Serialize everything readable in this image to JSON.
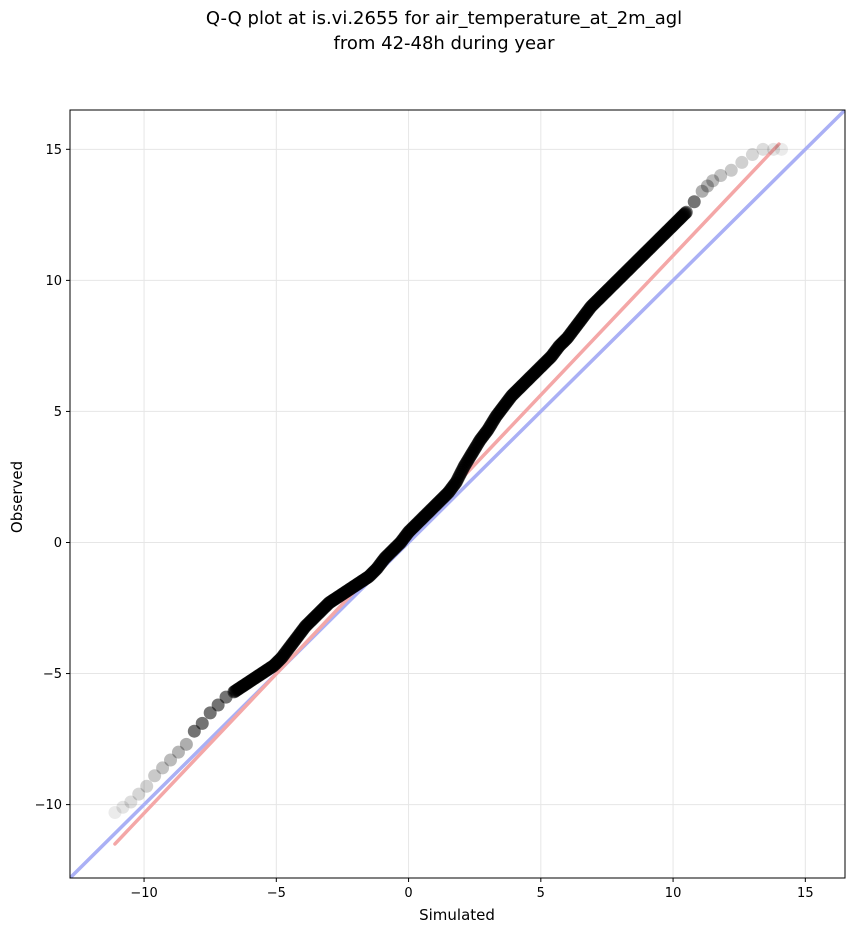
{
  "chart_data": {
    "type": "scatter",
    "title": "Q-Q plot at is.vi.2655 for air_temperature_at_2m_agl",
    "subtitle": "from 42-48h during year",
    "xlabel": "Simulated",
    "ylabel": "Observed",
    "xlim": [
      -12.8,
      16.5
    ],
    "ylim": [
      -12.8,
      16.5
    ],
    "xticks": [
      -10,
      -5,
      0,
      5,
      10,
      15
    ],
    "yticks": [
      -10,
      -5,
      0,
      5,
      10,
      15
    ],
    "xtick_labels": [
      "−10",
      "−5",
      "0",
      "5",
      "10",
      "15"
    ],
    "ytick_labels": [
      "−10",
      "−5",
      "0",
      "5",
      "10",
      "15"
    ],
    "grid": true,
    "qq_points": {
      "x": [
        -11.1,
        -10.8,
        -10.5,
        -10.2,
        -9.9,
        -9.6,
        -9.3,
        -9.0,
        -8.7,
        -8.4,
        -8.1,
        -7.8,
        -7.5,
        -7.2,
        -6.9,
        -6.6,
        -6.3,
        -6.0,
        -5.7,
        -5.4,
        -5.1,
        -4.8,
        -4.5,
        -4.2,
        -3.9,
        -3.6,
        -3.3,
        -3.0,
        -2.7,
        -2.4,
        -2.1,
        -1.8,
        -1.5,
        -1.2,
        -0.9,
        -0.6,
        -0.3,
        0.0,
        0.3,
        0.6,
        0.9,
        1.2,
        1.5,
        1.8,
        2.1,
        2.4,
        2.7,
        3.0,
        3.3,
        3.6,
        3.9,
        4.2,
        4.5,
        4.8,
        5.1,
        5.4,
        5.7,
        6.0,
        6.3,
        6.6,
        6.9,
        7.2,
        7.5,
        7.8,
        8.1,
        8.4,
        8.7,
        9.0,
        9.3,
        9.6,
        9.9,
        10.2,
        10.5,
        10.8,
        11.1,
        11.3,
        11.5,
        11.8,
        12.2,
        12.6,
        13.0,
        13.4,
        13.8,
        14.1
      ],
      "y": [
        -10.3,
        -10.1,
        -9.9,
        -9.6,
        -9.3,
        -8.9,
        -8.6,
        -8.3,
        -8.0,
        -7.7,
        -7.2,
        -6.9,
        -6.5,
        -6.2,
        -5.9,
        -5.7,
        -5.5,
        -5.3,
        -5.1,
        -4.9,
        -4.7,
        -4.4,
        -4.0,
        -3.6,
        -3.2,
        -2.9,
        -2.6,
        -2.3,
        -2.1,
        -1.9,
        -1.7,
        -1.5,
        -1.3,
        -1.0,
        -0.6,
        -0.3,
        0.0,
        0.4,
        0.7,
        1.0,
        1.3,
        1.6,
        1.9,
        2.3,
        2.9,
        3.4,
        3.9,
        4.3,
        4.8,
        5.2,
        5.6,
        5.9,
        6.2,
        6.5,
        6.8,
        7.1,
        7.5,
        7.8,
        8.2,
        8.6,
        9.0,
        9.3,
        9.6,
        9.9,
        10.2,
        10.5,
        10.8,
        11.1,
        11.4,
        11.7,
        12.0,
        12.3,
        12.6,
        13.0,
        13.4,
        13.6,
        13.8,
        14.0,
        14.2,
        14.5,
        14.8,
        15.0,
        15.0,
        15.0
      ],
      "color": "#000000"
    },
    "reference_lines": [
      {
        "x": [
          -12.8,
          16.5
        ],
        "y": [
          -12.8,
          16.5
        ],
        "color": "#aab0f5"
      },
      {
        "x": [
          -11.1,
          14.0
        ],
        "y": [
          -11.5,
          15.2
        ],
        "color": "#f4a7a7"
      }
    ]
  }
}
